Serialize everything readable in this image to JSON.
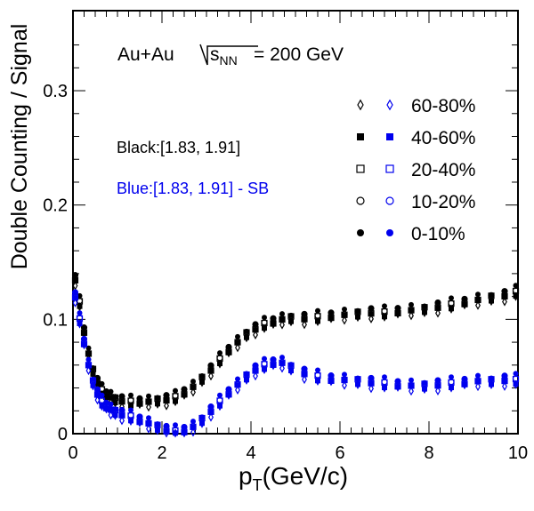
{
  "chart_data": {
    "type": "scatter",
    "title": "",
    "xlabel_main": "p",
    "xlabel_sub": "T",
    "xlabel_tail": "(GeV/c)",
    "ylabel": "Double Counting / Signal",
    "xlim": [
      0,
      10
    ],
    "ylim": [
      0,
      0.37
    ],
    "x_ticks": [
      "0",
      "2",
      "4",
      "6",
      "8",
      "10"
    ],
    "y_ticks": [
      "0",
      "0.1",
      "0.2",
      "0.3"
    ],
    "annotations": {
      "system_prefix": "Au+Au",
      "energy_symbol": "s",
      "energy_sub": "NN",
      "energy_value": "= 200 GeV",
      "black_note": "Black:[1.83, 1.91]",
      "blue_note": "Blue:[1.83, 1.91] - SB"
    },
    "colors": {
      "black": "#000000",
      "blue": "#0000ee"
    },
    "legend_position": "top-right",
    "legend": [
      {
        "label": "60-80%",
        "marker": "open-diamond"
      },
      {
        "label": "40-60%",
        "marker": "filled-square"
      },
      {
        "label": "20-40%",
        "marker": "open-square"
      },
      {
        "label": "10-20%",
        "marker": "open-circle"
      },
      {
        "label": "0-10%",
        "marker": "filled-circle"
      }
    ],
    "series": [
      {
        "group": "black",
        "points": [
          [
            0.05,
            0.135
          ],
          [
            0.15,
            0.115
          ],
          [
            0.25,
            0.09
          ],
          [
            0.35,
            0.07
          ],
          [
            0.45,
            0.055
          ],
          [
            0.55,
            0.045
          ],
          [
            0.65,
            0.038
          ],
          [
            0.75,
            0.034
          ],
          [
            0.85,
            0.032
          ],
          [
            0.95,
            0.03
          ],
          [
            1.1,
            0.029
          ],
          [
            1.3,
            0.028
          ],
          [
            1.5,
            0.028
          ],
          [
            1.7,
            0.028
          ],
          [
            1.9,
            0.029
          ],
          [
            2.1,
            0.03
          ],
          [
            2.3,
            0.032
          ],
          [
            2.5,
            0.036
          ],
          [
            2.7,
            0.041
          ],
          [
            2.9,
            0.048
          ],
          [
            3.1,
            0.056
          ],
          [
            3.3,
            0.065
          ],
          [
            3.5,
            0.073
          ],
          [
            3.7,
            0.08
          ],
          [
            3.9,
            0.087
          ],
          [
            4.1,
            0.092
          ],
          [
            4.3,
            0.096
          ],
          [
            4.5,
            0.098
          ],
          [
            4.7,
            0.1
          ],
          [
            4.9,
            0.101
          ],
          [
            5.2,
            0.101
          ],
          [
            5.5,
            0.102
          ],
          [
            5.8,
            0.103
          ],
          [
            6.1,
            0.104
          ],
          [
            6.4,
            0.105
          ],
          [
            6.7,
            0.106
          ],
          [
            7.0,
            0.106
          ],
          [
            7.3,
            0.107
          ],
          [
            7.6,
            0.108
          ],
          [
            7.9,
            0.109
          ],
          [
            8.2,
            0.111
          ],
          [
            8.5,
            0.113
          ],
          [
            8.8,
            0.115
          ],
          [
            9.1,
            0.117
          ],
          [
            9.4,
            0.119
          ],
          [
            9.7,
            0.121
          ],
          [
            9.95,
            0.124
          ]
        ]
      },
      {
        "group": "blue",
        "points": [
          [
            0.05,
            0.12
          ],
          [
            0.15,
            0.1
          ],
          [
            0.25,
            0.08
          ],
          [
            0.35,
            0.06
          ],
          [
            0.45,
            0.045
          ],
          [
            0.55,
            0.035
          ],
          [
            0.65,
            0.028
          ],
          [
            0.75,
            0.024
          ],
          [
            0.85,
            0.021
          ],
          [
            0.95,
            0.019
          ],
          [
            1.1,
            0.017
          ],
          [
            1.3,
            0.015
          ],
          [
            1.5,
            0.012
          ],
          [
            1.7,
            0.009
          ],
          [
            1.9,
            0.006
          ],
          [
            2.1,
            0.003
          ],
          [
            2.3,
            0.002
          ],
          [
            2.5,
            0.003
          ],
          [
            2.7,
            0.006
          ],
          [
            2.9,
            0.012
          ],
          [
            3.1,
            0.02
          ],
          [
            3.3,
            0.028
          ],
          [
            3.5,
            0.036
          ],
          [
            3.7,
            0.043
          ],
          [
            3.9,
            0.05
          ],
          [
            4.1,
            0.056
          ],
          [
            4.3,
            0.06
          ],
          [
            4.5,
            0.062
          ],
          [
            4.7,
            0.062
          ],
          [
            4.9,
            0.058
          ],
          [
            5.2,
            0.053
          ],
          [
            5.5,
            0.05
          ],
          [
            5.8,
            0.048
          ],
          [
            6.1,
            0.047
          ],
          [
            6.4,
            0.046
          ],
          [
            6.7,
            0.045
          ],
          [
            7.0,
            0.044
          ],
          [
            7.3,
            0.043
          ],
          [
            7.6,
            0.042
          ],
          [
            7.9,
            0.042
          ],
          [
            8.2,
            0.043
          ],
          [
            8.5,
            0.044
          ],
          [
            8.8,
            0.045
          ],
          [
            9.1,
            0.046
          ],
          [
            9.4,
            0.046
          ],
          [
            9.7,
            0.047
          ],
          [
            9.95,
            0.047
          ]
        ]
      }
    ]
  }
}
